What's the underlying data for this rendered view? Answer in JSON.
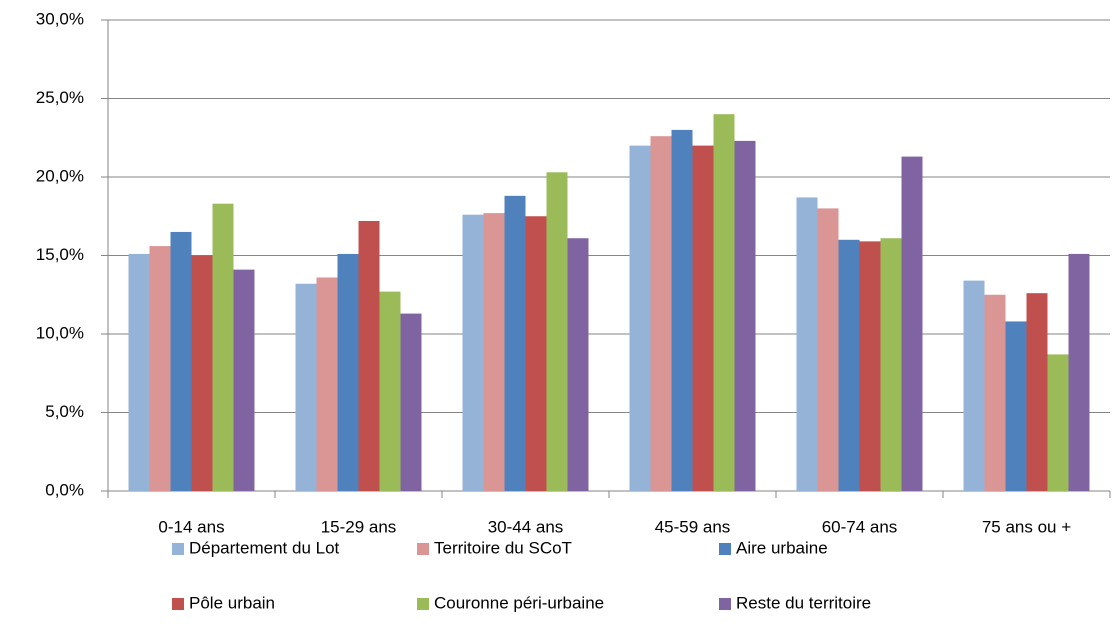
{
  "chart_data": {
    "type": "bar",
    "categories": [
      "0-14 ans",
      "15-29 ans",
      "30-44 ans",
      "45-59 ans",
      "60-74 ans",
      "75 ans ou +"
    ],
    "series": [
      {
        "name": "Département du Lot",
        "color": "#95b3d7",
        "values": [
          15.1,
          13.2,
          17.6,
          22.0,
          18.7,
          13.4
        ]
      },
      {
        "name": "Territoire du SCoT",
        "color": "#d99694",
        "values": [
          15.6,
          13.6,
          17.7,
          22.6,
          18.0,
          12.5
        ]
      },
      {
        "name": "Aire urbaine",
        "color": "#4f81bd",
        "values": [
          16.5,
          15.1,
          18.8,
          23.0,
          16.0,
          10.8
        ]
      },
      {
        "name": "Pôle urbain",
        "color": "#c0504d",
        "values": [
          15.0,
          17.2,
          17.5,
          22.0,
          15.9,
          12.6
        ]
      },
      {
        "name": "Couronne péri-urbaine",
        "color": "#9bbb59",
        "values": [
          18.3,
          12.7,
          20.3,
          24.0,
          16.1,
          8.7
        ]
      },
      {
        "name": "Reste du territoire",
        "color": "#8064a2",
        "values": [
          14.1,
          11.3,
          16.1,
          22.3,
          21.3,
          15.1
        ]
      }
    ],
    "ylim": [
      0,
      30
    ],
    "yticks": [
      {
        "value": 0,
        "label": "0,0%"
      },
      {
        "value": 5,
        "label": "5,0%"
      },
      {
        "value": 10,
        "label": "10,0%"
      },
      {
        "value": 15,
        "label": "15,0%"
      },
      {
        "value": 20,
        "label": "20,0%"
      },
      {
        "value": 25,
        "label": "25,0%"
      },
      {
        "value": 30,
        "label": "30,0%"
      }
    ],
    "grid": true,
    "legend": "bottom"
  }
}
